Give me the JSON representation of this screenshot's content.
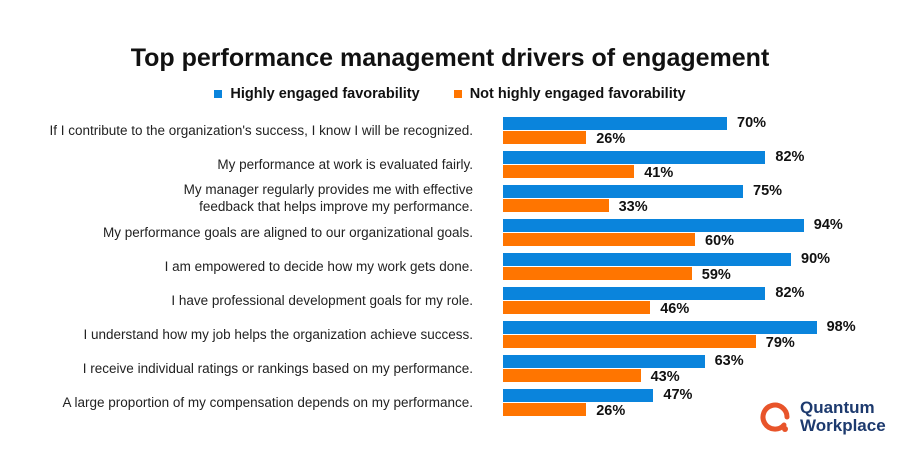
{
  "chart_data": {
    "type": "bar",
    "orientation": "horizontal",
    "title": "Top performance management drivers of engagement",
    "xlim": [
      0,
      100
    ],
    "grid": false,
    "legend_position": "top",
    "categories": [
      "If I contribute to the organization's success, I know I will be recognized.",
      "My performance at work is evaluated fairly.",
      "My manager regularly provides me with effective feedback that helps improve my performance.",
      "My performance goals are aligned to our organizational goals.",
      "I am empowered to decide how my work gets done.",
      "I have professional development goals for my role.",
      "I understand how my job helps the organization achieve success.",
      "I receive individual ratings or rankings based on my performance.",
      "A large proportion of my compensation depends on my performance."
    ],
    "series": [
      {
        "name": "Highly engaged favorability",
        "color": "#0a84dc",
        "values": [
          70,
          82,
          75,
          94,
          90,
          82,
          98,
          63,
          47
        ]
      },
      {
        "name": "Not highly engaged favorability",
        "color": "#ff7500",
        "values": [
          26,
          41,
          33,
          60,
          59,
          46,
          79,
          43,
          26
        ]
      }
    ]
  },
  "label_lines": [
    [
      "If I contribute to the organization's success, I know I will be recognized."
    ],
    [
      "My performance at work is evaluated fairly."
    ],
    [
      "My manager regularly provides me with effective",
      "feedback that helps improve my performance."
    ],
    [
      "My performance goals are aligned to our organizational goals."
    ],
    [
      "I am empowered to decide how my work gets done."
    ],
    [
      "I have professional development goals for my role."
    ],
    [
      "I understand how my job helps the organization achieve success."
    ],
    [
      "I receive individual ratings or rankings based on my performance."
    ],
    [
      "A large proportion of my compensation depends on my performance."
    ]
  ],
  "logo": {
    "line1": "Quantum",
    "line2": "Workplace",
    "color": "#e8542a"
  }
}
